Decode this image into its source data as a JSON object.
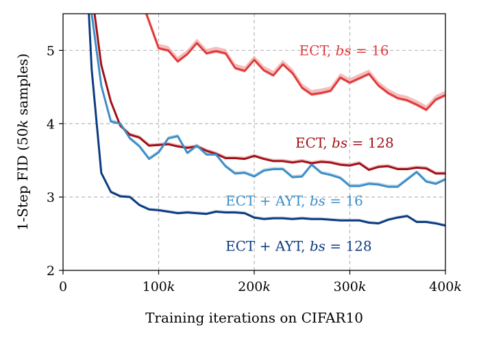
{
  "chart_data": {
    "type": "line",
    "xlabel": "Training iterations on CIFAR10",
    "ylabel": "1-Step FID (50k samples)",
    "xlim": [
      0,
      400000
    ],
    "ylim": [
      2,
      5.5
    ],
    "grid": true,
    "legend": "inline labels",
    "x_ticks": [
      {
        "value": 0,
        "label": "0"
      },
      {
        "value": 100000,
        "label": "100k"
      },
      {
        "value": 200000,
        "label": "200k"
      },
      {
        "value": 300000,
        "label": "300k"
      },
      {
        "value": 400000,
        "label": "400k"
      }
    ],
    "y_ticks": [
      {
        "value": 2,
        "label": "2"
      },
      {
        "value": 3,
        "label": "3"
      },
      {
        "value": 4,
        "label": "4"
      },
      {
        "value": 5,
        "label": "5"
      }
    ],
    "series": [
      {
        "name": "ECT, bs = 16",
        "color": "#e03a3a",
        "band_color": "#f2a7a7",
        "band": 0.06,
        "x": [
          87000,
          100000,
          110000,
          120000,
          130000,
          140000,
          150000,
          160000,
          170000,
          180000,
          190000,
          200000,
          210000,
          220000,
          230000,
          240000,
          250000,
          260000,
          270000,
          280000,
          290000,
          300000,
          310000,
          320000,
          330000,
          340000,
          350000,
          360000,
          370000,
          380000,
          390000,
          400000
        ],
        "y": [
          5.5,
          5.03,
          5.0,
          4.85,
          4.95,
          5.1,
          4.96,
          4.99,
          4.96,
          4.76,
          4.72,
          4.87,
          4.73,
          4.66,
          4.81,
          4.69,
          4.49,
          4.4,
          4.42,
          4.45,
          4.63,
          4.56,
          4.62,
          4.68,
          4.52,
          4.42,
          4.35,
          4.32,
          4.26,
          4.19,
          4.33,
          4.39
        ]
      },
      {
        "name": "ECT, bs = 128",
        "color": "#a01018",
        "band_color": "#e3a4a4",
        "band": 0.03,
        "x": [
          33000,
          40000,
          50000,
          60000,
          70000,
          80000,
          90000,
          100000,
          110000,
          120000,
          130000,
          140000,
          150000,
          160000,
          170000,
          180000,
          190000,
          200000,
          210000,
          220000,
          230000,
          240000,
          250000,
          260000,
          270000,
          280000,
          290000,
          300000,
          310000,
          320000,
          330000,
          340000,
          350000,
          360000,
          370000,
          380000,
          390000,
          400000
        ],
        "y": [
          5.5,
          4.8,
          4.3,
          3.97,
          3.85,
          3.81,
          3.7,
          3.71,
          3.72,
          3.69,
          3.67,
          3.69,
          3.63,
          3.59,
          3.53,
          3.53,
          3.52,
          3.56,
          3.52,
          3.49,
          3.49,
          3.47,
          3.49,
          3.46,
          3.48,
          3.47,
          3.44,
          3.43,
          3.46,
          3.37,
          3.41,
          3.42,
          3.38,
          3.38,
          3.4,
          3.39,
          3.32,
          3.32
        ]
      },
      {
        "name": "ECT + AYT, bs = 16",
        "color": "#3d8ec7",
        "band_color": "#a9cbe6",
        "band": 0.03,
        "x": [
          30000,
          40000,
          50000,
          60000,
          70000,
          80000,
          90000,
          100000,
          110000,
          120000,
          130000,
          140000,
          150000,
          160000,
          170000,
          180000,
          190000,
          200000,
          210000,
          220000,
          230000,
          240000,
          250000,
          260000,
          270000,
          280000,
          290000,
          300000,
          310000,
          320000,
          330000,
          340000,
          350000,
          360000,
          370000,
          380000,
          390000,
          400000
        ],
        "y": [
          5.5,
          4.52,
          4.03,
          4.0,
          3.8,
          3.69,
          3.52,
          3.61,
          3.8,
          3.83,
          3.6,
          3.7,
          3.58,
          3.58,
          3.42,
          3.32,
          3.33,
          3.28,
          3.36,
          3.38,
          3.38,
          3.27,
          3.28,
          3.44,
          3.33,
          3.3,
          3.26,
          3.15,
          3.15,
          3.18,
          3.17,
          3.14,
          3.14,
          3.24,
          3.34,
          3.21,
          3.18,
          3.24
        ]
      },
      {
        "name": "ECT + AYT, bs = 128",
        "color": "#0b3b80",
        "band_color": "#b7c6de",
        "band": 0.025,
        "x": [
          27000,
          30000,
          40000,
          50000,
          60000,
          70000,
          80000,
          90000,
          100000,
          110000,
          120000,
          130000,
          140000,
          150000,
          160000,
          170000,
          180000,
          190000,
          200000,
          210000,
          220000,
          230000,
          240000,
          250000,
          260000,
          270000,
          280000,
          290000,
          300000,
          310000,
          320000,
          330000,
          340000,
          350000,
          360000,
          370000,
          380000,
          390000,
          400000
        ],
        "y": [
          5.5,
          4.74,
          3.33,
          3.07,
          3.01,
          3.0,
          2.89,
          2.83,
          2.82,
          2.8,
          2.78,
          2.79,
          2.78,
          2.77,
          2.8,
          2.79,
          2.79,
          2.78,
          2.72,
          2.7,
          2.71,
          2.71,
          2.7,
          2.71,
          2.7,
          2.7,
          2.69,
          2.68,
          2.68,
          2.68,
          2.65,
          2.64,
          2.69,
          2.72,
          2.74,
          2.66,
          2.66,
          2.64,
          2.61
        ]
      }
    ],
    "labels": [
      {
        "series": 0,
        "prefix": "ECT, ",
        "var": "bs",
        "suffix": " = 16",
        "x": 247000,
        "y": 5.0
      },
      {
        "series": 1,
        "prefix": "ECT, ",
        "var": "bs",
        "suffix": " = 128",
        "x": 243000,
        "y": 3.74
      },
      {
        "series": 2,
        "prefix": "ECT + AYT, ",
        "var": "bs",
        "suffix": " = 16",
        "x": 170000,
        "y": 2.95
      },
      {
        "series": 3,
        "prefix": "ECT + AYT, ",
        "var": "bs",
        "suffix": " = 128",
        "x": 170000,
        "y": 2.33
      }
    ]
  }
}
